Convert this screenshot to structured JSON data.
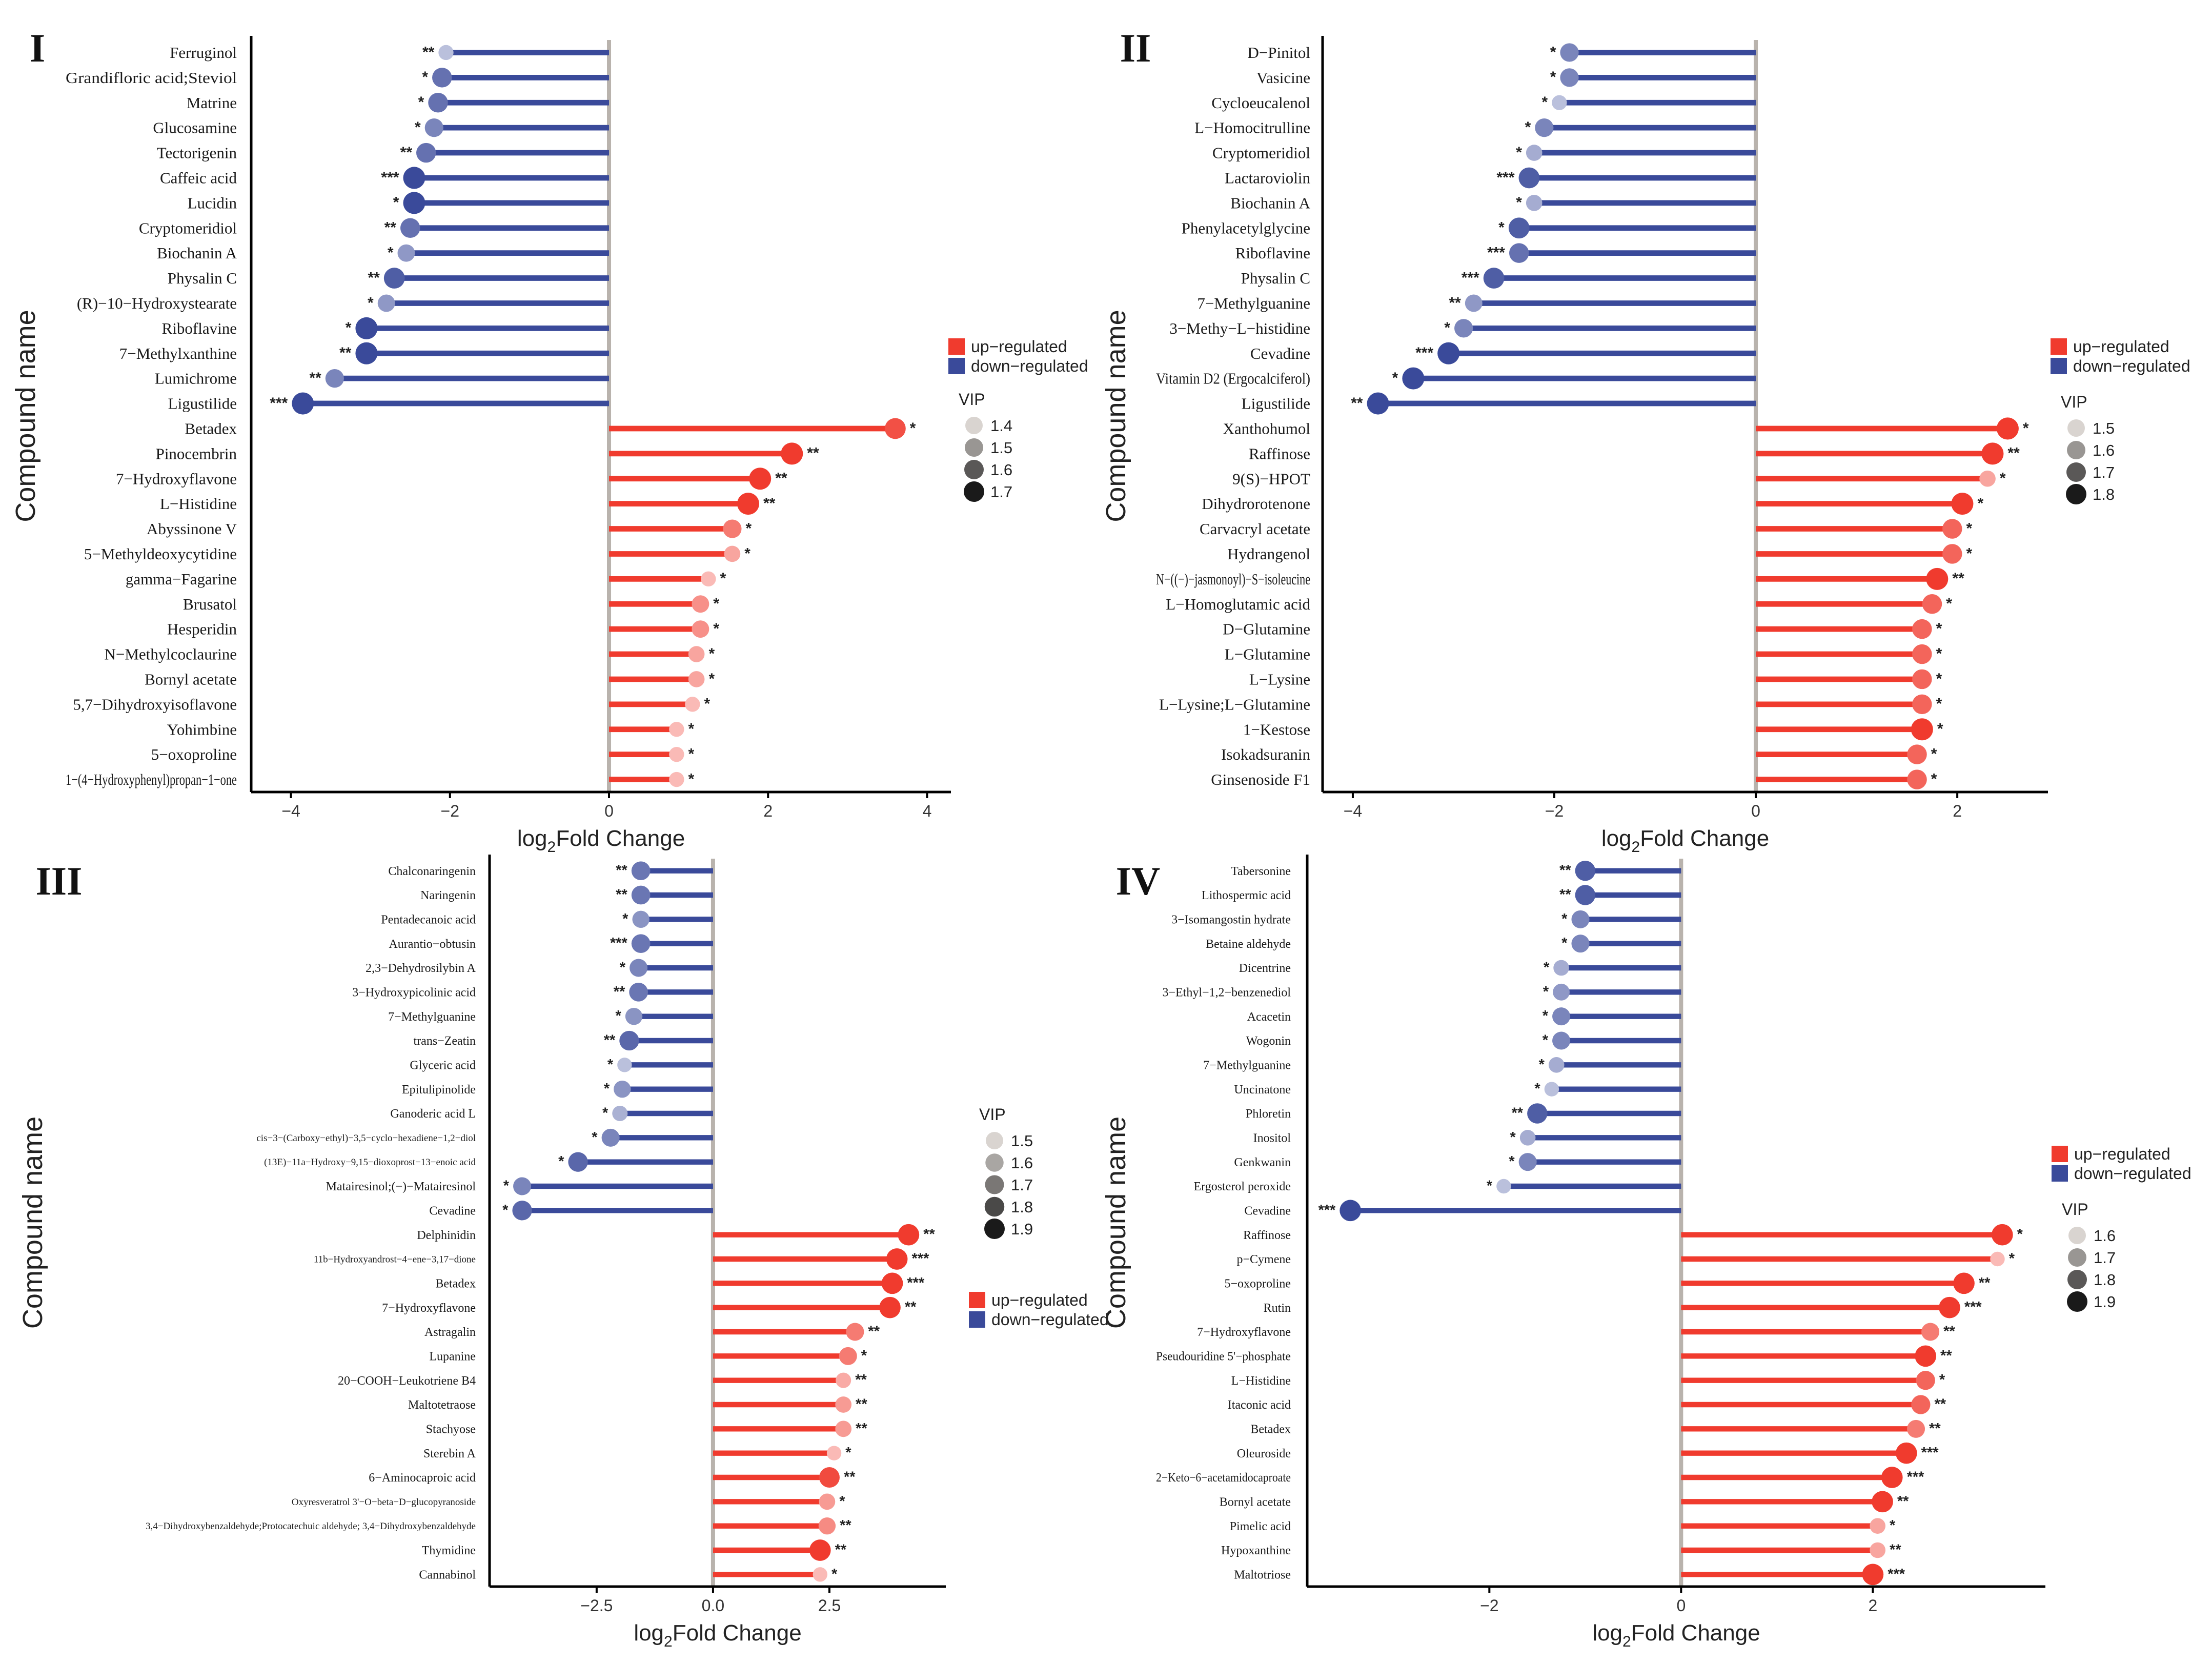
{
  "figure": {
    "ylabel": "Compound name",
    "xlabel_prefix": "log",
    "xlabel_sub": "2",
    "xlabel_suffix": "Fold Change",
    "legend_up": "up−regulated",
    "legend_down": "down−regulated",
    "vip_title": "VIP",
    "colors": {
      "up": "#f03b2e",
      "down": "#3a4a9a",
      "zero_line": "#b9b3ad",
      "axis": "#000000"
    }
  },
  "chart_data": [
    {
      "type": "lollipop",
      "panel": "I",
      "xlim": [
        -4.5,
        4.3
      ],
      "xticks": [
        -4,
        -2,
        0,
        2,
        4
      ],
      "xtick_labels": [
        "−4",
        "−2",
        "0",
        "2",
        "4"
      ],
      "vip_legend": [
        "1.4",
        "1.5",
        "1.6",
        "1.7"
      ],
      "vip_range": [
        1.4,
        1.7
      ],
      "compounds": [
        {
          "name": "Ferruginol",
          "lfc": -2.05,
          "vip": 1.4,
          "sig": "**"
        },
        {
          "name": "Grandifloric acid;Steviol",
          "lfc": -2.1,
          "vip": 1.6,
          "sig": "*"
        },
        {
          "name": "Matrine",
          "lfc": -2.15,
          "vip": 1.6,
          "sig": "*"
        },
        {
          "name": "Glucosamine",
          "lfc": -2.2,
          "vip": 1.55,
          "sig": "*"
        },
        {
          "name": "Tectorigenin",
          "lfc": -2.3,
          "vip": 1.6,
          "sig": "**"
        },
        {
          "name": "Caffeic acid",
          "lfc": -2.45,
          "vip": 1.7,
          "sig": "***"
        },
        {
          "name": "Lucidin",
          "lfc": -2.45,
          "vip": 1.7,
          "sig": "*"
        },
        {
          "name": "Cryptomeridiol",
          "lfc": -2.5,
          "vip": 1.6,
          "sig": "**"
        },
        {
          "name": "Biochanin A",
          "lfc": -2.55,
          "vip": 1.5,
          "sig": "*"
        },
        {
          "name": "Physalin C",
          "lfc": -2.7,
          "vip": 1.65,
          "sig": "**"
        },
        {
          "name": "(R)−10−Hydroxystearate",
          "lfc": -2.8,
          "vip": 1.5,
          "sig": "*"
        },
        {
          "name": "Riboflavine",
          "lfc": -3.05,
          "vip": 1.7,
          "sig": "*"
        },
        {
          "name": "7−Methylxanthine",
          "lfc": -3.05,
          "vip": 1.7,
          "sig": "**"
        },
        {
          "name": "Lumichrome",
          "lfc": -3.45,
          "vip": 1.55,
          "sig": "**"
        },
        {
          "name": "Ligustilide",
          "lfc": -3.85,
          "vip": 1.7,
          "sig": "***"
        },
        {
          "name": "Betadex",
          "lfc": 3.6,
          "vip": 1.65,
          "sig": "*"
        },
        {
          "name": "Pinocembrin",
          "lfc": 2.3,
          "vip": 1.7,
          "sig": "**"
        },
        {
          "name": "7−Hydroxyflavone",
          "lfc": 1.9,
          "vip": 1.7,
          "sig": "**"
        },
        {
          "name": "L−Histidine",
          "lfc": 1.75,
          "vip": 1.7,
          "sig": "**"
        },
        {
          "name": "Abyssinone V",
          "lfc": 1.55,
          "vip": 1.55,
          "sig": "*"
        },
        {
          "name": "5−Methyldeoxycytidine",
          "lfc": 1.55,
          "vip": 1.45,
          "sig": "*"
        },
        {
          "name": "gamma−Fagarine",
          "lfc": 1.25,
          "vip": 1.4,
          "sig": "*"
        },
        {
          "name": "Brusatol",
          "lfc": 1.15,
          "vip": 1.5,
          "sig": "*"
        },
        {
          "name": "Hesperidin",
          "lfc": 1.15,
          "vip": 1.5,
          "sig": "*"
        },
        {
          "name": "N−Methylcoclaurine",
          "lfc": 1.1,
          "vip": 1.45,
          "sig": "*"
        },
        {
          "name": "Bornyl acetate",
          "lfc": 1.1,
          "vip": 1.45,
          "sig": "*"
        },
        {
          "name": "5,7−Dihydroxyisoflavone",
          "lfc": 1.05,
          "vip": 1.4,
          "sig": "*"
        },
        {
          "name": "Yohimbine",
          "lfc": 0.85,
          "vip": 1.4,
          "sig": "*"
        },
        {
          "name": "5−oxoproline",
          "lfc": 0.85,
          "vip": 1.4,
          "sig": "*"
        },
        {
          "name": "1−(4−Hydroxyphenyl)propan−1−one",
          "lfc": 0.85,
          "vip": 1.4,
          "sig": "*"
        }
      ]
    },
    {
      "type": "lollipop",
      "panel": "II",
      "xlim": [
        -4.3,
        2.9
      ],
      "xticks": [
        -4,
        -2,
        0,
        2
      ],
      "xtick_labels": [
        "−4",
        "−2",
        "0",
        "2"
      ],
      "vip_legend": [
        "1.5",
        "1.6",
        "1.7",
        "1.8"
      ],
      "vip_range": [
        1.5,
        1.8
      ],
      "compounds": [
        {
          "name": "D−Pinitol",
          "lfc": -1.85,
          "vip": 1.65,
          "sig": "*"
        },
        {
          "name": "Vasicine",
          "lfc": -1.85,
          "vip": 1.65,
          "sig": "*"
        },
        {
          "name": "Cycloeucalenol",
          "lfc": -1.95,
          "vip": 1.5,
          "sig": "*"
        },
        {
          "name": "L−Homocitrulline",
          "lfc": -2.1,
          "vip": 1.65,
          "sig": "*"
        },
        {
          "name": "Cryptomeridiol",
          "lfc": -2.2,
          "vip": 1.55,
          "sig": "*"
        },
        {
          "name": "Lactaroviolin",
          "lfc": -2.25,
          "vip": 1.75,
          "sig": "***"
        },
        {
          "name": "Biochanin A",
          "lfc": -2.2,
          "vip": 1.55,
          "sig": "*"
        },
        {
          "name": "Phenylacetylglycine",
          "lfc": -2.35,
          "vip": 1.75,
          "sig": "*"
        },
        {
          "name": "Riboflavine",
          "lfc": -2.35,
          "vip": 1.7,
          "sig": "***"
        },
        {
          "name": "Physalin C",
          "lfc": -2.6,
          "vip": 1.75,
          "sig": "***"
        },
        {
          "name": "7−Methylguanine",
          "lfc": -2.8,
          "vip": 1.6,
          "sig": "**"
        },
        {
          "name": "3−Methy−L−histidine",
          "lfc": -2.9,
          "vip": 1.65,
          "sig": "*"
        },
        {
          "name": "Cevadine",
          "lfc": -3.05,
          "vip": 1.8,
          "sig": "***"
        },
        {
          "name": "Vitamin D2 (Ergocalciferol)",
          "lfc": -3.4,
          "vip": 1.8,
          "sig": "*"
        },
        {
          "name": "Ligustilide",
          "lfc": -3.75,
          "vip": 1.8,
          "sig": "**"
        },
        {
          "name": "Xanthohumol",
          "lfc": 2.5,
          "vip": 1.8,
          "sig": "*"
        },
        {
          "name": "Raffinose",
          "lfc": 2.35,
          "vip": 1.8,
          "sig": "**"
        },
        {
          "name": "9(S)−HPOT",
          "lfc": 2.3,
          "vip": 1.55,
          "sig": "*"
        },
        {
          "name": "Dihydrorotenone",
          "lfc": 2.05,
          "vip": 1.8,
          "sig": "*"
        },
        {
          "name": "Carvacryl acetate",
          "lfc": 1.95,
          "vip": 1.7,
          "sig": "*"
        },
        {
          "name": "Hydrangenol",
          "lfc": 1.95,
          "vip": 1.7,
          "sig": "*"
        },
        {
          "name": "N−((−)−jasmonoyl)−S−isoleucine",
          "lfc": 1.8,
          "vip": 1.8,
          "sig": "**"
        },
        {
          "name": "L−Homoglutamic acid",
          "lfc": 1.75,
          "vip": 1.7,
          "sig": "*"
        },
        {
          "name": "D−Glutamine",
          "lfc": 1.65,
          "vip": 1.7,
          "sig": "*"
        },
        {
          "name": "L−Glutamine",
          "lfc": 1.65,
          "vip": 1.7,
          "sig": "*"
        },
        {
          "name": "L−Lysine",
          "lfc": 1.65,
          "vip": 1.7,
          "sig": "*"
        },
        {
          "name": "L−Lysine;L−Glutamine",
          "lfc": 1.65,
          "vip": 1.7,
          "sig": "*"
        },
        {
          "name": "1−Kestose",
          "lfc": 1.65,
          "vip": 1.8,
          "sig": "*"
        },
        {
          "name": "Isokadsuranin",
          "lfc": 1.6,
          "vip": 1.7,
          "sig": "*"
        },
        {
          "name": "Ginsenoside F1",
          "lfc": 1.6,
          "vip": 1.7,
          "sig": "*"
        }
      ]
    },
    {
      "type": "lollipop",
      "panel": "III",
      "xlim": [
        -4.8,
        5.0
      ],
      "xticks": [
        -2.5,
        0,
        2.5
      ],
      "xtick_labels": [
        "−2.5",
        "0.0",
        "2.5"
      ],
      "vip_legend": [
        "1.5",
        "1.6",
        "1.7",
        "1.8",
        "1.9"
      ],
      "vip_range": [
        1.5,
        1.9
      ],
      "compounds": [
        {
          "name": "Chalconaringenin",
          "lfc": -1.55,
          "vip": 1.75,
          "sig": "**"
        },
        {
          "name": "Naringenin",
          "lfc": -1.55,
          "vip": 1.75,
          "sig": "**"
        },
        {
          "name": "Pentadecanoic acid",
          "lfc": -1.55,
          "vip": 1.65,
          "sig": "*"
        },
        {
          "name": "Aurantio−obtusin",
          "lfc": -1.55,
          "vip": 1.75,
          "sig": "***"
        },
        {
          "name": "2,3−Dehydrosilybin A",
          "lfc": -1.6,
          "vip": 1.7,
          "sig": "*"
        },
        {
          "name": "3−Hydroxypicolinic acid",
          "lfc": -1.6,
          "vip": 1.75,
          "sig": "**"
        },
        {
          "name": "7−Methylguanine",
          "lfc": -1.7,
          "vip": 1.65,
          "sig": "*"
        },
        {
          "name": "trans−Zeatin",
          "lfc": -1.8,
          "vip": 1.8,
          "sig": "**"
        },
        {
          "name": "Glyceric acid",
          "lfc": -1.9,
          "vip": 1.5,
          "sig": "*"
        },
        {
          "name": "Epitulipinolide",
          "lfc": -1.95,
          "vip": 1.65,
          "sig": "*"
        },
        {
          "name": "Ganoderic acid L",
          "lfc": -2.0,
          "vip": 1.55,
          "sig": "*"
        },
        {
          "name": "cis−3−(Carboxy−ethyl)−3,5−cyclo−hexadiene−1,2−diol",
          "lfc": -2.2,
          "vip": 1.7,
          "sig": "*"
        },
        {
          "name": "(13E)−11a−Hydroxy−9,15−dioxoprost−13−enoic acid",
          "lfc": -2.9,
          "vip": 1.8,
          "sig": "*"
        },
        {
          "name": "Matairesinol;(−)−Matairesinol",
          "lfc": -4.1,
          "vip": 1.7,
          "sig": "*"
        },
        {
          "name": "Cevadine",
          "lfc": -4.1,
          "vip": 1.8,
          "sig": "*"
        },
        {
          "name": "Delphinidin",
          "lfc": 4.2,
          "vip": 1.9,
          "sig": "**"
        },
        {
          "name": "11b−Hydroxyandrost−4−ene−3,17−dione",
          "lfc": 3.95,
          "vip": 1.9,
          "sig": "***"
        },
        {
          "name": "Betadex",
          "lfc": 3.85,
          "vip": 1.9,
          "sig": "***"
        },
        {
          "name": "7−Hydroxyflavone",
          "lfc": 3.8,
          "vip": 1.9,
          "sig": "**"
        },
        {
          "name": "Astragalin",
          "lfc": 3.05,
          "vip": 1.7,
          "sig": "**"
        },
        {
          "name": "Lupanine",
          "lfc": 2.9,
          "vip": 1.7,
          "sig": "*"
        },
        {
          "name": "20−COOH−Leukotriene B4",
          "lfc": 2.8,
          "vip": 1.55,
          "sig": "**"
        },
        {
          "name": "Maltotetraose",
          "lfc": 2.8,
          "vip": 1.6,
          "sig": "**"
        },
        {
          "name": "Stachyose",
          "lfc": 2.8,
          "vip": 1.6,
          "sig": "**"
        },
        {
          "name": "Sterebin A",
          "lfc": 2.6,
          "vip": 1.5,
          "sig": "*"
        },
        {
          "name": "6−Aminocaproic acid",
          "lfc": 2.5,
          "vip": 1.85,
          "sig": "**"
        },
        {
          "name": "Oxyresveratrol 3'−O−beta−D−glucopyranoside",
          "lfc": 2.45,
          "vip": 1.6,
          "sig": "*"
        },
        {
          "name": "3,4−Dihydroxybenzaldehyde;Protocatechuic aldehyde; 3,4−Dihydroxybenzaldehyde",
          "lfc": 2.45,
          "vip": 1.65,
          "sig": "**"
        },
        {
          "name": "Thymidine",
          "lfc": 2.3,
          "vip": 1.9,
          "sig": "**"
        },
        {
          "name": "Cannabinol",
          "lfc": 2.3,
          "vip": 1.5,
          "sig": "*"
        }
      ]
    },
    {
      "type": "lollipop",
      "panel": "IV",
      "xlim": [
        -3.9,
        3.8
      ],
      "xticks": [
        -2,
        0,
        2
      ],
      "xtick_labels": [
        "−2",
        "0",
        "2"
      ],
      "vip_legend": [
        "1.6",
        "1.7",
        "1.8",
        "1.9"
      ],
      "vip_range": [
        1.6,
        1.9
      ],
      "compounds": [
        {
          "name": "Tabersonine",
          "lfc": -1.0,
          "vip": 1.85,
          "sig": "**"
        },
        {
          "name": "Lithospermic acid",
          "lfc": -1.0,
          "vip": 1.85,
          "sig": "**"
        },
        {
          "name": "3−Isomangostin hydrate",
          "lfc": -1.05,
          "vip": 1.75,
          "sig": "*"
        },
        {
          "name": "Betaine aldehyde",
          "lfc": -1.05,
          "vip": 1.75,
          "sig": "*"
        },
        {
          "name": "Dicentrine",
          "lfc": -1.25,
          "vip": 1.65,
          "sig": "*"
        },
        {
          "name": "3−Ethyl−1,2−benzenediol",
          "lfc": -1.25,
          "vip": 1.7,
          "sig": "*"
        },
        {
          "name": "Acacetin",
          "lfc": -1.25,
          "vip": 1.75,
          "sig": "*"
        },
        {
          "name": "Wogonin",
          "lfc": -1.25,
          "vip": 1.75,
          "sig": "*"
        },
        {
          "name": "7−Methylguanine",
          "lfc": -1.3,
          "vip": 1.65,
          "sig": "*"
        },
        {
          "name": "Uncinatone",
          "lfc": -1.35,
          "vip": 1.6,
          "sig": "*"
        },
        {
          "name": "Phloretin",
          "lfc": -1.5,
          "vip": 1.85,
          "sig": "**"
        },
        {
          "name": "Inositol",
          "lfc": -1.6,
          "vip": 1.65,
          "sig": "*"
        },
        {
          "name": "Genkwanin",
          "lfc": -1.6,
          "vip": 1.75,
          "sig": "*"
        },
        {
          "name": "Ergosterol peroxide",
          "lfc": -1.85,
          "vip": 1.6,
          "sig": "*"
        },
        {
          "name": "Cevadine",
          "lfc": -3.45,
          "vip": 1.9,
          "sig": "***"
        },
        {
          "name": "Raffinose",
          "lfc": 3.35,
          "vip": 1.9,
          "sig": "*"
        },
        {
          "name": "p−Cymene",
          "lfc": 3.3,
          "vip": 1.6,
          "sig": "*"
        },
        {
          "name": "5−oxoproline",
          "lfc": 2.95,
          "vip": 1.9,
          "sig": "**"
        },
        {
          "name": "Rutin",
          "lfc": 2.8,
          "vip": 1.9,
          "sig": "***"
        },
        {
          "name": "7−Hydroxyflavone",
          "lfc": 2.6,
          "vip": 1.75,
          "sig": "**"
        },
        {
          "name": "Pseudouridine 5'−phosphate",
          "lfc": 2.55,
          "vip": 1.9,
          "sig": "**"
        },
        {
          "name": "L−Histidine",
          "lfc": 2.55,
          "vip": 1.8,
          "sig": "*"
        },
        {
          "name": "Itaconic acid",
          "lfc": 2.5,
          "vip": 1.8,
          "sig": "**"
        },
        {
          "name": "Betadex",
          "lfc": 2.45,
          "vip": 1.75,
          "sig": "**"
        },
        {
          "name": "Oleuroside",
          "lfc": 2.35,
          "vip": 1.9,
          "sig": "***"
        },
        {
          "name": "2−Keto−6−acetamidocaproate",
          "lfc": 2.2,
          "vip": 1.9,
          "sig": "***"
        },
        {
          "name": "Bornyl acetate",
          "lfc": 2.1,
          "vip": 1.9,
          "sig": "**"
        },
        {
          "name": "Pimelic acid",
          "lfc": 2.05,
          "vip": 1.65,
          "sig": "*"
        },
        {
          "name": "Hypoxanthine",
          "lfc": 2.05,
          "vip": 1.65,
          "sig": "**"
        },
        {
          "name": "Maltotriose",
          "lfc": 2.0,
          "vip": 1.9,
          "sig": "***"
        }
      ]
    }
  ]
}
